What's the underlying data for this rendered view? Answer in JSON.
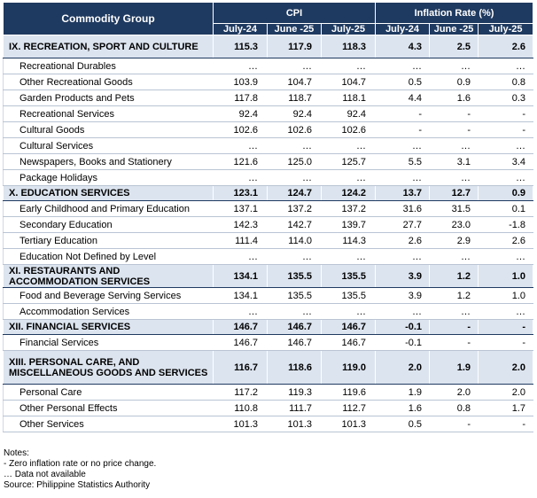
{
  "header": {
    "group_label": "Commodity Group",
    "cpi_label": "CPI",
    "rate_label": "Inflation Rate (%)",
    "periods": [
      "July-24",
      "June -25",
      "July-25"
    ]
  },
  "rows": [
    {
      "type": "group",
      "name": "IX. RECREATION, SPORT AND CULTURE",
      "cpi": [
        "115.3",
        "117.9",
        "118.3"
      ],
      "rate": [
        "4.3",
        "2.5",
        "2.6"
      ]
    },
    {
      "type": "item",
      "name": "Recreational Durables",
      "cpi": [
        "…",
        "…",
        "…"
      ],
      "rate": [
        "…",
        "…",
        "…"
      ]
    },
    {
      "type": "item",
      "name": "Other Recreational Goods",
      "cpi": [
        "103.9",
        "104.7",
        "104.7"
      ],
      "rate": [
        "0.5",
        "0.9",
        "0.8"
      ]
    },
    {
      "type": "item",
      "name": "Garden Products and Pets",
      "cpi": [
        "117.8",
        "118.7",
        "118.1"
      ],
      "rate": [
        "4.4",
        "1.6",
        "0.3"
      ]
    },
    {
      "type": "item",
      "name": "Recreational Services",
      "cpi": [
        "92.4",
        "92.4",
        "92.4"
      ],
      "rate": [
        "-",
        "-",
        "-"
      ]
    },
    {
      "type": "item",
      "name": "Cultural Goods",
      "cpi": [
        "102.6",
        "102.6",
        "102.6"
      ],
      "rate": [
        "-",
        "-",
        "-"
      ]
    },
    {
      "type": "item",
      "name": "Cultural Services",
      "cpi": [
        "…",
        "…",
        "…"
      ],
      "rate": [
        "…",
        "…",
        "…"
      ]
    },
    {
      "type": "item",
      "name": "Newspapers, Books and Stationery",
      "cpi": [
        "121.6",
        "125.0",
        "125.7"
      ],
      "rate": [
        "5.5",
        "3.1",
        "3.4"
      ]
    },
    {
      "type": "item",
      "name": "Package Holidays",
      "cpi": [
        "…",
        "…",
        "…"
      ],
      "rate": [
        "…",
        "…",
        "…"
      ]
    },
    {
      "type": "group",
      "name": "X. EDUCATION SERVICES",
      "cpi": [
        "123.1",
        "124.7",
        "124.2"
      ],
      "rate": [
        "13.7",
        "12.7",
        "0.9"
      ]
    },
    {
      "type": "item",
      "name": "Early Childhood and Primary  Education",
      "cpi": [
        "137.1",
        "137.2",
        "137.2"
      ],
      "rate": [
        "31.6",
        "31.5",
        "0.1"
      ]
    },
    {
      "type": "item",
      "name": "Secondary Education",
      "cpi": [
        "142.3",
        "142.7",
        "139.7"
      ],
      "rate": [
        "27.7",
        "23.0",
        "-1.8"
      ]
    },
    {
      "type": "item",
      "name": "Tertiary Education",
      "cpi": [
        "111.4",
        "114.0",
        "114.3"
      ],
      "rate": [
        "2.6",
        "2.9",
        "2.6"
      ]
    },
    {
      "type": "item",
      "name": "Education Not Defined by Level",
      "cpi": [
        "…",
        "…",
        "…"
      ],
      "rate": [
        "…",
        "…",
        "…"
      ]
    },
    {
      "type": "group",
      "name": "XI. RESTAURANTS AND ACCOMMODATION SERVICES",
      "cpi": [
        "134.1",
        "135.5",
        "135.5"
      ],
      "rate": [
        "3.9",
        "1.2",
        "1.0"
      ]
    },
    {
      "type": "item",
      "name": "Food and Beverage Serving Services",
      "cpi": [
        "134.1",
        "135.5",
        "135.5"
      ],
      "rate": [
        "3.9",
        "1.2",
        "1.0"
      ]
    },
    {
      "type": "item",
      "name": "Accommodation Services",
      "cpi": [
        "…",
        "…",
        "…"
      ],
      "rate": [
        "…",
        "…",
        "…"
      ]
    },
    {
      "type": "group",
      "name": "XII. FINANCIAL SERVICES",
      "cpi": [
        "146.7",
        "146.7",
        "146.7"
      ],
      "rate": [
        "-0.1",
        "-",
        "-"
      ]
    },
    {
      "type": "item",
      "name": "Financial Services",
      "cpi": [
        "146.7",
        "146.7",
        "146.7"
      ],
      "rate": [
        "-0.1",
        "-",
        "-"
      ]
    },
    {
      "type": "group",
      "name": "XIII. PERSONAL CARE, AND MISCELLANEOUS GOODS AND SERVICES",
      "cpi": [
        "116.7",
        "118.6",
        "119.0"
      ],
      "rate": [
        "2.0",
        "1.9",
        "2.0"
      ]
    },
    {
      "type": "item",
      "name": "Personal Care",
      "cpi": [
        "117.2",
        "119.3",
        "119.6"
      ],
      "rate": [
        "1.9",
        "2.0",
        "2.0"
      ]
    },
    {
      "type": "item",
      "name": "Other Personal Effects",
      "cpi": [
        "110.8",
        "111.7",
        "112.7"
      ],
      "rate": [
        "1.6",
        "0.8",
        "1.7"
      ]
    },
    {
      "type": "item",
      "name": "Other Services",
      "cpi": [
        "101.3",
        "101.3",
        "101.3"
      ],
      "rate": [
        "0.5",
        "-",
        "-"
      ]
    }
  ],
  "notes": {
    "title": "Notes:",
    "lines": [
      "- Zero inflation rate or no price change.",
      "… Data not available"
    ],
    "source": "Source: Philippine Statistics Authority"
  },
  "colors": {
    "header_bg": "#1f3a60",
    "group_bg": "#dce4ef"
  }
}
